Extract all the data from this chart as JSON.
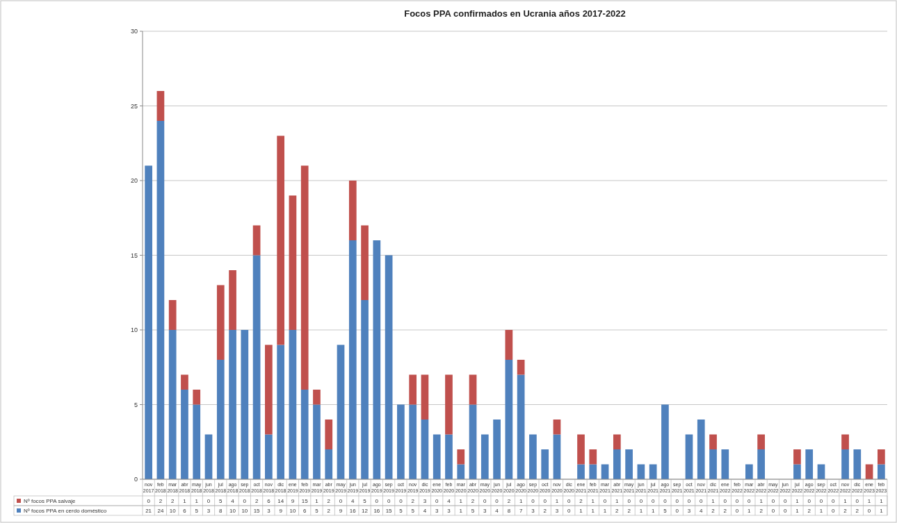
{
  "chart_data": {
    "type": "bar",
    "title": "Focos PPA confirmados en Ucrania años 2017-2022",
    "categories": [
      "nov 2017",
      "feb 2018",
      "mar 2018",
      "abr 2018",
      "may 2018",
      "jun 2018",
      "jul 2018",
      "ago 2018",
      "sep 2018",
      "oct 2018",
      "nov 2018",
      "dic 2018",
      "ene 2019",
      "feb 2019",
      "mar 2019",
      "abr 2019",
      "may 2019",
      "jun 2019",
      "jul 2019",
      "ago 2019",
      "sep 2019",
      "oct 2019",
      "nov 2019",
      "dic 2019",
      "ene 2020",
      "feb 2020",
      "mar 2020",
      "abr 2020",
      "may 2020",
      "jun 2020",
      "jul 2020",
      "ago 2020",
      "sep 2020",
      "oct 2020",
      "nov 2020",
      "dic 2020",
      "ene 2021",
      "feb 2021",
      "mar 2021",
      "abr 2021",
      "may 2021",
      "jun 2021",
      "jul 2021",
      "ago 2021",
      "sep 2021",
      "oct 2021",
      "nov 2021",
      "dic 2021",
      "ene 2022",
      "feb 2022",
      "mar 2022",
      "abr 2022",
      "may 2022",
      "jun 2022",
      "jul 2022",
      "ago 2022",
      "sep 2022",
      "oct 2022",
      "nov 2022",
      "dic 2022",
      "ene 2023",
      "feb 2023"
    ],
    "series": [
      {
        "name": "Nº focos PPA en cerdo doméstico",
        "color": "#4f81bd",
        "values": [
          21,
          24,
          10,
          6,
          5,
          3,
          8,
          10,
          10,
          15,
          3,
          9,
          10,
          6,
          5,
          2,
          9,
          16,
          12,
          16,
          15,
          5,
          5,
          4,
          3,
          3,
          1,
          5,
          3,
          4,
          8,
          7,
          3,
          2,
          3,
          0,
          1,
          1,
          1,
          2,
          2,
          1,
          1,
          5,
          0,
          3,
          4,
          2,
          2,
          0,
          1,
          2,
          0,
          0,
          1,
          2,
          1,
          0,
          2,
          2,
          0,
          1
        ]
      },
      {
        "name": "Nº focos PPA salvaje",
        "color": "#c0504d",
        "values": [
          0,
          2,
          2,
          1,
          1,
          0,
          5,
          4,
          0,
          2,
          6,
          14,
          9,
          15,
          1,
          2,
          0,
          4,
          5,
          0,
          0,
          0,
          2,
          3,
          0,
          4,
          1,
          2,
          0,
          0,
          2,
          1,
          0,
          0,
          1,
          0,
          2,
          1,
          0,
          1,
          0,
          0,
          0,
          0,
          0,
          0,
          0,
          1,
          0,
          0,
          0,
          1,
          0,
          0,
          1,
          0,
          0,
          0,
          1,
          0,
          1,
          1
        ]
      }
    ],
    "stacked": true,
    "ylim": [
      0,
      30
    ],
    "yticks": [
      0,
      5,
      10,
      15,
      20,
      25,
      30
    ],
    "grid": "y",
    "legend": "bottom",
    "data_labels": true
  }
}
